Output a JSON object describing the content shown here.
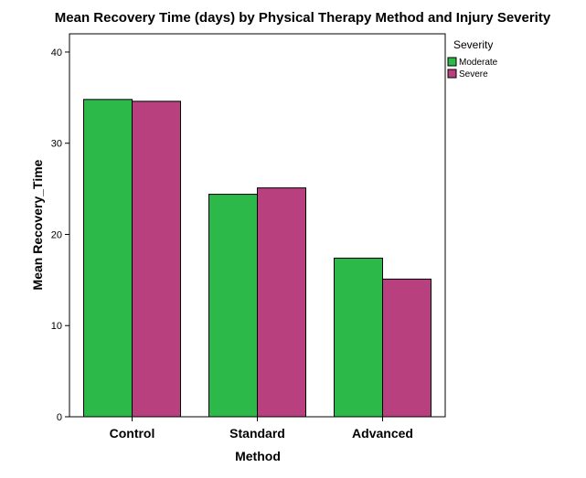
{
  "chart_data": {
    "type": "bar",
    "title": "Mean Recovery Time (days) by Physical Therapy Method and Injury Severity",
    "xlabel": "Method",
    "ylabel": "Mean Recovery_Time",
    "categories": [
      "Control",
      "Standard",
      "Advanced"
    ],
    "series": [
      {
        "name": "Moderate",
        "values": [
          34.8,
          24.4,
          17.4
        ],
        "color": "#2db84a"
      },
      {
        "name": "Severe",
        "values": [
          34.6,
          25.1,
          15.1
        ],
        "color": "#b8407e"
      }
    ],
    "ylim": [
      0,
      42
    ],
    "yticks": [
      0,
      10,
      20,
      30,
      40
    ],
    "legend": {
      "title": "Severity",
      "placement": "top-right-outside"
    },
    "grid": false
  }
}
